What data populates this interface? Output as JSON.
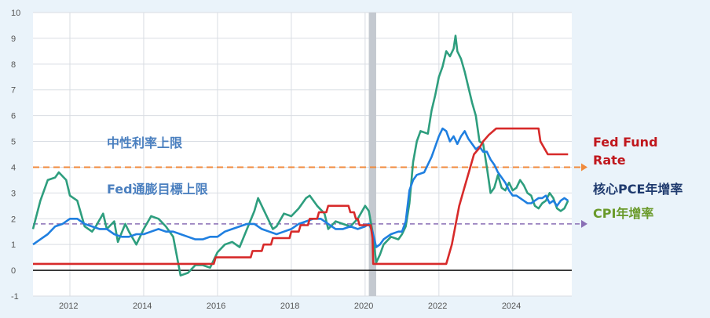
{
  "chart_data": {
    "type": "line",
    "xlim": [
      2011.0,
      2025.6
    ],
    "ylim": [
      -1,
      10
    ],
    "x_ticks": [
      2012,
      2014,
      2016,
      2018,
      2020,
      2022,
      2024
    ],
    "y_ticks": [
      -1,
      0,
      1,
      2,
      3,
      4,
      5,
      6,
      7,
      8,
      9,
      10
    ],
    "grid": true,
    "shaded_period": [
      2020.1,
      2020.3
    ],
    "series": [
      {
        "name": "CPI年增率",
        "color": "#2e9e7e",
        "label_color": "#6a9a2a",
        "points": [
          [
            2011.0,
            1.6
          ],
          [
            2011.2,
            2.7
          ],
          [
            2011.4,
            3.5
          ],
          [
            2011.6,
            3.6
          ],
          [
            2011.7,
            3.8
          ],
          [
            2011.9,
            3.5
          ],
          [
            2012.0,
            2.9
          ],
          [
            2012.2,
            2.7
          ],
          [
            2012.4,
            1.7
          ],
          [
            2012.6,
            1.5
          ],
          [
            2012.7,
            1.7
          ],
          [
            2012.9,
            2.2
          ],
          [
            2013.0,
            1.6
          ],
          [
            2013.2,
            1.9
          ],
          [
            2013.3,
            1.1
          ],
          [
            2013.5,
            1.8
          ],
          [
            2013.6,
            1.5
          ],
          [
            2013.8,
            1.0
          ],
          [
            2014.0,
            1.6
          ],
          [
            2014.2,
            2.1
          ],
          [
            2014.4,
            2.0
          ],
          [
            2014.6,
            1.7
          ],
          [
            2014.8,
            1.3
          ],
          [
            2015.0,
            -0.2
          ],
          [
            2015.2,
            -0.1
          ],
          [
            2015.4,
            0.2
          ],
          [
            2015.6,
            0.2
          ],
          [
            2015.8,
            0.1
          ],
          [
            2016.0,
            0.7
          ],
          [
            2016.2,
            1.0
          ],
          [
            2016.4,
            1.1
          ],
          [
            2016.6,
            0.9
          ],
          [
            2016.8,
            1.6
          ],
          [
            2017.0,
            2.3
          ],
          [
            2017.1,
            2.8
          ],
          [
            2017.3,
            2.2
          ],
          [
            2017.5,
            1.6
          ],
          [
            2017.6,
            1.7
          ],
          [
            2017.8,
            2.2
          ],
          [
            2018.0,
            2.1
          ],
          [
            2018.2,
            2.4
          ],
          [
            2018.4,
            2.8
          ],
          [
            2018.5,
            2.9
          ],
          [
            2018.7,
            2.5
          ],
          [
            2018.9,
            2.2
          ],
          [
            2019.0,
            1.6
          ],
          [
            2019.2,
            1.9
          ],
          [
            2019.4,
            1.8
          ],
          [
            2019.6,
            1.7
          ],
          [
            2019.8,
            2.0
          ],
          [
            2020.0,
            2.5
          ],
          [
            2020.1,
            2.3
          ],
          [
            2020.2,
            1.5
          ],
          [
            2020.3,
            0.3
          ],
          [
            2020.4,
            0.6
          ],
          [
            2020.5,
            1.0
          ],
          [
            2020.7,
            1.3
          ],
          [
            2020.9,
            1.2
          ],
          [
            2021.0,
            1.4
          ],
          [
            2021.1,
            1.7
          ],
          [
            2021.2,
            2.6
          ],
          [
            2021.3,
            4.2
          ],
          [
            2021.4,
            5.0
          ],
          [
            2021.5,
            5.4
          ],
          [
            2021.7,
            5.3
          ],
          [
            2021.8,
            6.2
          ],
          [
            2021.9,
            6.8
          ],
          [
            2022.0,
            7.5
          ],
          [
            2022.1,
            7.9
          ],
          [
            2022.2,
            8.5
          ],
          [
            2022.3,
            8.3
          ],
          [
            2022.4,
            8.6
          ],
          [
            2022.45,
            9.1
          ],
          [
            2022.5,
            8.5
          ],
          [
            2022.6,
            8.2
          ],
          [
            2022.7,
            7.7
          ],
          [
            2022.8,
            7.1
          ],
          [
            2022.9,
            6.5
          ],
          [
            2023.0,
            6.0
          ],
          [
            2023.1,
            5.0
          ],
          [
            2023.2,
            4.9
          ],
          [
            2023.3,
            4.0
          ],
          [
            2023.4,
            3.0
          ],
          [
            2023.5,
            3.2
          ],
          [
            2023.6,
            3.7
          ],
          [
            2023.7,
            3.2
          ],
          [
            2023.8,
            3.1
          ],
          [
            2023.9,
            3.4
          ],
          [
            2024.0,
            3.1
          ],
          [
            2024.1,
            3.2
          ],
          [
            2024.2,
            3.5
          ],
          [
            2024.3,
            3.3
          ],
          [
            2024.4,
            3.0
          ],
          [
            2024.5,
            2.9
          ],
          [
            2024.6,
            2.5
          ],
          [
            2024.7,
            2.4
          ],
          [
            2024.8,
            2.6
          ],
          [
            2024.9,
            2.7
          ],
          [
            2025.0,
            3.0
          ],
          [
            2025.1,
            2.8
          ],
          [
            2025.2,
            2.4
          ],
          [
            2025.3,
            2.3
          ],
          [
            2025.4,
            2.4
          ],
          [
            2025.5,
            2.7
          ]
        ]
      },
      {
        "name": "核心PCE年增率",
        "color": "#1f7fe0",
        "label_color": "#1f3a6e",
        "points": [
          [
            2011.0,
            1.0
          ],
          [
            2011.2,
            1.2
          ],
          [
            2011.4,
            1.4
          ],
          [
            2011.6,
            1.7
          ],
          [
            2011.8,
            1.8
          ],
          [
            2012.0,
            2.0
          ],
          [
            2012.2,
            2.0
          ],
          [
            2012.4,
            1.8
          ],
          [
            2012.6,
            1.7
          ],
          [
            2012.8,
            1.6
          ],
          [
            2013.0,
            1.6
          ],
          [
            2013.2,
            1.4
          ],
          [
            2013.4,
            1.3
          ],
          [
            2013.6,
            1.3
          ],
          [
            2013.8,
            1.4
          ],
          [
            2014.0,
            1.4
          ],
          [
            2014.2,
            1.5
          ],
          [
            2014.4,
            1.6
          ],
          [
            2014.6,
            1.5
          ],
          [
            2014.8,
            1.5
          ],
          [
            2015.0,
            1.4
          ],
          [
            2015.2,
            1.3
          ],
          [
            2015.4,
            1.2
          ],
          [
            2015.6,
            1.2
          ],
          [
            2015.8,
            1.3
          ],
          [
            2016.0,
            1.3
          ],
          [
            2016.2,
            1.5
          ],
          [
            2016.4,
            1.6
          ],
          [
            2016.6,
            1.7
          ],
          [
            2016.8,
            1.8
          ],
          [
            2017.0,
            1.8
          ],
          [
            2017.2,
            1.6
          ],
          [
            2017.4,
            1.5
          ],
          [
            2017.6,
            1.4
          ],
          [
            2017.8,
            1.5
          ],
          [
            2018.0,
            1.6
          ],
          [
            2018.2,
            1.8
          ],
          [
            2018.4,
            1.9
          ],
          [
            2018.6,
            2.0
          ],
          [
            2018.8,
            2.0
          ],
          [
            2019.0,
            1.8
          ],
          [
            2019.2,
            1.6
          ],
          [
            2019.4,
            1.6
          ],
          [
            2019.6,
            1.7
          ],
          [
            2019.8,
            1.6
          ],
          [
            2020.0,
            1.7
          ],
          [
            2020.1,
            1.8
          ],
          [
            2020.2,
            1.5
          ],
          [
            2020.3,
            0.9
          ],
          [
            2020.4,
            1.0
          ],
          [
            2020.5,
            1.2
          ],
          [
            2020.7,
            1.4
          ],
          [
            2020.9,
            1.5
          ],
          [
            2021.0,
            1.5
          ],
          [
            2021.1,
            1.9
          ],
          [
            2021.2,
            3.1
          ],
          [
            2021.3,
            3.5
          ],
          [
            2021.4,
            3.7
          ],
          [
            2021.6,
            3.8
          ],
          [
            2021.8,
            4.4
          ],
          [
            2021.9,
            4.8
          ],
          [
            2022.0,
            5.2
          ],
          [
            2022.1,
            5.5
          ],
          [
            2022.2,
            5.4
          ],
          [
            2022.3,
            5.0
          ],
          [
            2022.4,
            5.2
          ],
          [
            2022.5,
            4.9
          ],
          [
            2022.6,
            5.2
          ],
          [
            2022.7,
            5.4
          ],
          [
            2022.8,
            5.1
          ],
          [
            2022.9,
            4.9
          ],
          [
            2023.0,
            4.7
          ],
          [
            2023.1,
            4.8
          ],
          [
            2023.2,
            4.6
          ],
          [
            2023.3,
            4.6
          ],
          [
            2023.4,
            4.3
          ],
          [
            2023.5,
            4.1
          ],
          [
            2023.6,
            3.8
          ],
          [
            2023.7,
            3.6
          ],
          [
            2023.8,
            3.4
          ],
          [
            2023.9,
            3.1
          ],
          [
            2024.0,
            2.9
          ],
          [
            2024.1,
            2.9
          ],
          [
            2024.2,
            2.8
          ],
          [
            2024.3,
            2.7
          ],
          [
            2024.4,
            2.6
          ],
          [
            2024.5,
            2.6
          ],
          [
            2024.6,
            2.7
          ],
          [
            2024.7,
            2.8
          ],
          [
            2024.8,
            2.8
          ],
          [
            2024.9,
            2.9
          ],
          [
            2025.0,
            2.6
          ],
          [
            2025.1,
            2.7
          ],
          [
            2025.2,
            2.5
          ],
          [
            2025.3,
            2.7
          ],
          [
            2025.4,
            2.8
          ],
          [
            2025.5,
            2.7
          ]
        ]
      },
      {
        "name": "Fed Fund Rate",
        "color": "#d72a2a",
        "label_color": "#c0171d",
        "step": true,
        "points": [
          [
            2011.0,
            0.25
          ],
          [
            2015.9,
            0.25
          ],
          [
            2015.95,
            0.5
          ],
          [
            2016.9,
            0.5
          ],
          [
            2016.95,
            0.75
          ],
          [
            2017.2,
            0.75
          ],
          [
            2017.25,
            1.0
          ],
          [
            2017.45,
            1.0
          ],
          [
            2017.5,
            1.25
          ],
          [
            2017.95,
            1.25
          ],
          [
            2018.0,
            1.5
          ],
          [
            2018.2,
            1.5
          ],
          [
            2018.25,
            1.75
          ],
          [
            2018.45,
            1.75
          ],
          [
            2018.5,
            2.0
          ],
          [
            2018.7,
            2.0
          ],
          [
            2018.75,
            2.25
          ],
          [
            2018.95,
            2.25
          ],
          [
            2019.0,
            2.5
          ],
          [
            2019.55,
            2.5
          ],
          [
            2019.6,
            2.25
          ],
          [
            2019.7,
            2.25
          ],
          [
            2019.75,
            2.0
          ],
          [
            2019.8,
            2.0
          ],
          [
            2019.85,
            1.75
          ],
          [
            2020.15,
            1.75
          ],
          [
            2020.2,
            1.25
          ],
          [
            2020.22,
            0.25
          ],
          [
            2022.2,
            0.25
          ],
          [
            2022.25,
            0.5
          ],
          [
            2022.35,
            1.0
          ],
          [
            2022.45,
            1.75
          ],
          [
            2022.55,
            2.5
          ],
          [
            2022.7,
            3.25
          ],
          [
            2022.85,
            4.0
          ],
          [
            2022.95,
            4.5
          ],
          [
            2023.1,
            4.75
          ],
          [
            2023.2,
            5.0
          ],
          [
            2023.35,
            5.25
          ],
          [
            2023.55,
            5.5
          ],
          [
            2024.7,
            5.5
          ],
          [
            2024.75,
            5.0
          ],
          [
            2024.85,
            4.75
          ],
          [
            2024.95,
            4.5
          ],
          [
            2025.5,
            4.5
          ]
        ]
      }
    ],
    "reference_lines": [
      {
        "label": "中性利率上限",
        "value": 4.0,
        "color": "#f08a3c",
        "text_color": "#4a7fbf"
      },
      {
        "label": "Fed通膨目標上限",
        "value": 1.8,
        "color": "#8a6fb5",
        "text_color": "#4a7fbf"
      }
    ],
    "right_labels": [
      "Fed Fund",
      "Rate"
    ]
  }
}
